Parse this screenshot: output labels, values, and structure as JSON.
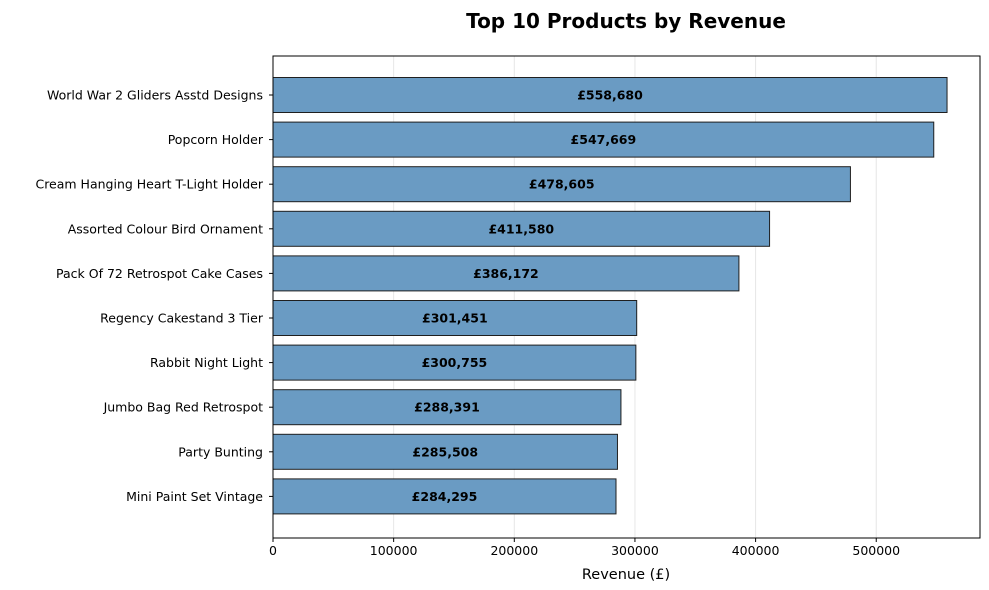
{
  "chart_data": {
    "type": "bar",
    "orientation": "horizontal",
    "title": "Top 10 Products by Revenue",
    "xlabel": "Revenue (£)",
    "ylabel": "",
    "xlim": [
      0,
      586000
    ],
    "xticks": [
      0,
      100000,
      200000,
      300000,
      400000,
      500000
    ],
    "xtick_labels": [
      "0",
      "100000",
      "200000",
      "300000",
      "400000",
      "500000"
    ],
    "grid": "x-axis vertical lines",
    "bar_color": "#6a9bc3",
    "bar_edge_color": "#1f1f1f",
    "categories": [
      "World War 2 Gliders Asstd Designs",
      "Popcorn Holder",
      "Cream Hanging Heart T-Light Holder",
      "Assorted Colour Bird Ornament",
      "Pack Of 72 Retrospot Cake Cases",
      "Regency Cakestand 3 Tier",
      "Rabbit Night Light",
      "Jumbo Bag Red Retrospot",
      "Party Bunting",
      "Mini Paint Set Vintage"
    ],
    "values": [
      558680,
      547669,
      478605,
      411580,
      386172,
      301451,
      300755,
      288391,
      285508,
      284295
    ],
    "data_labels": [
      "£558,680",
      "£547,669",
      "£478,605",
      "£411,580",
      "£386,172",
      "£301,451",
      "£300,755",
      "£288,391",
      "£285,508",
      "£284,295"
    ]
  }
}
